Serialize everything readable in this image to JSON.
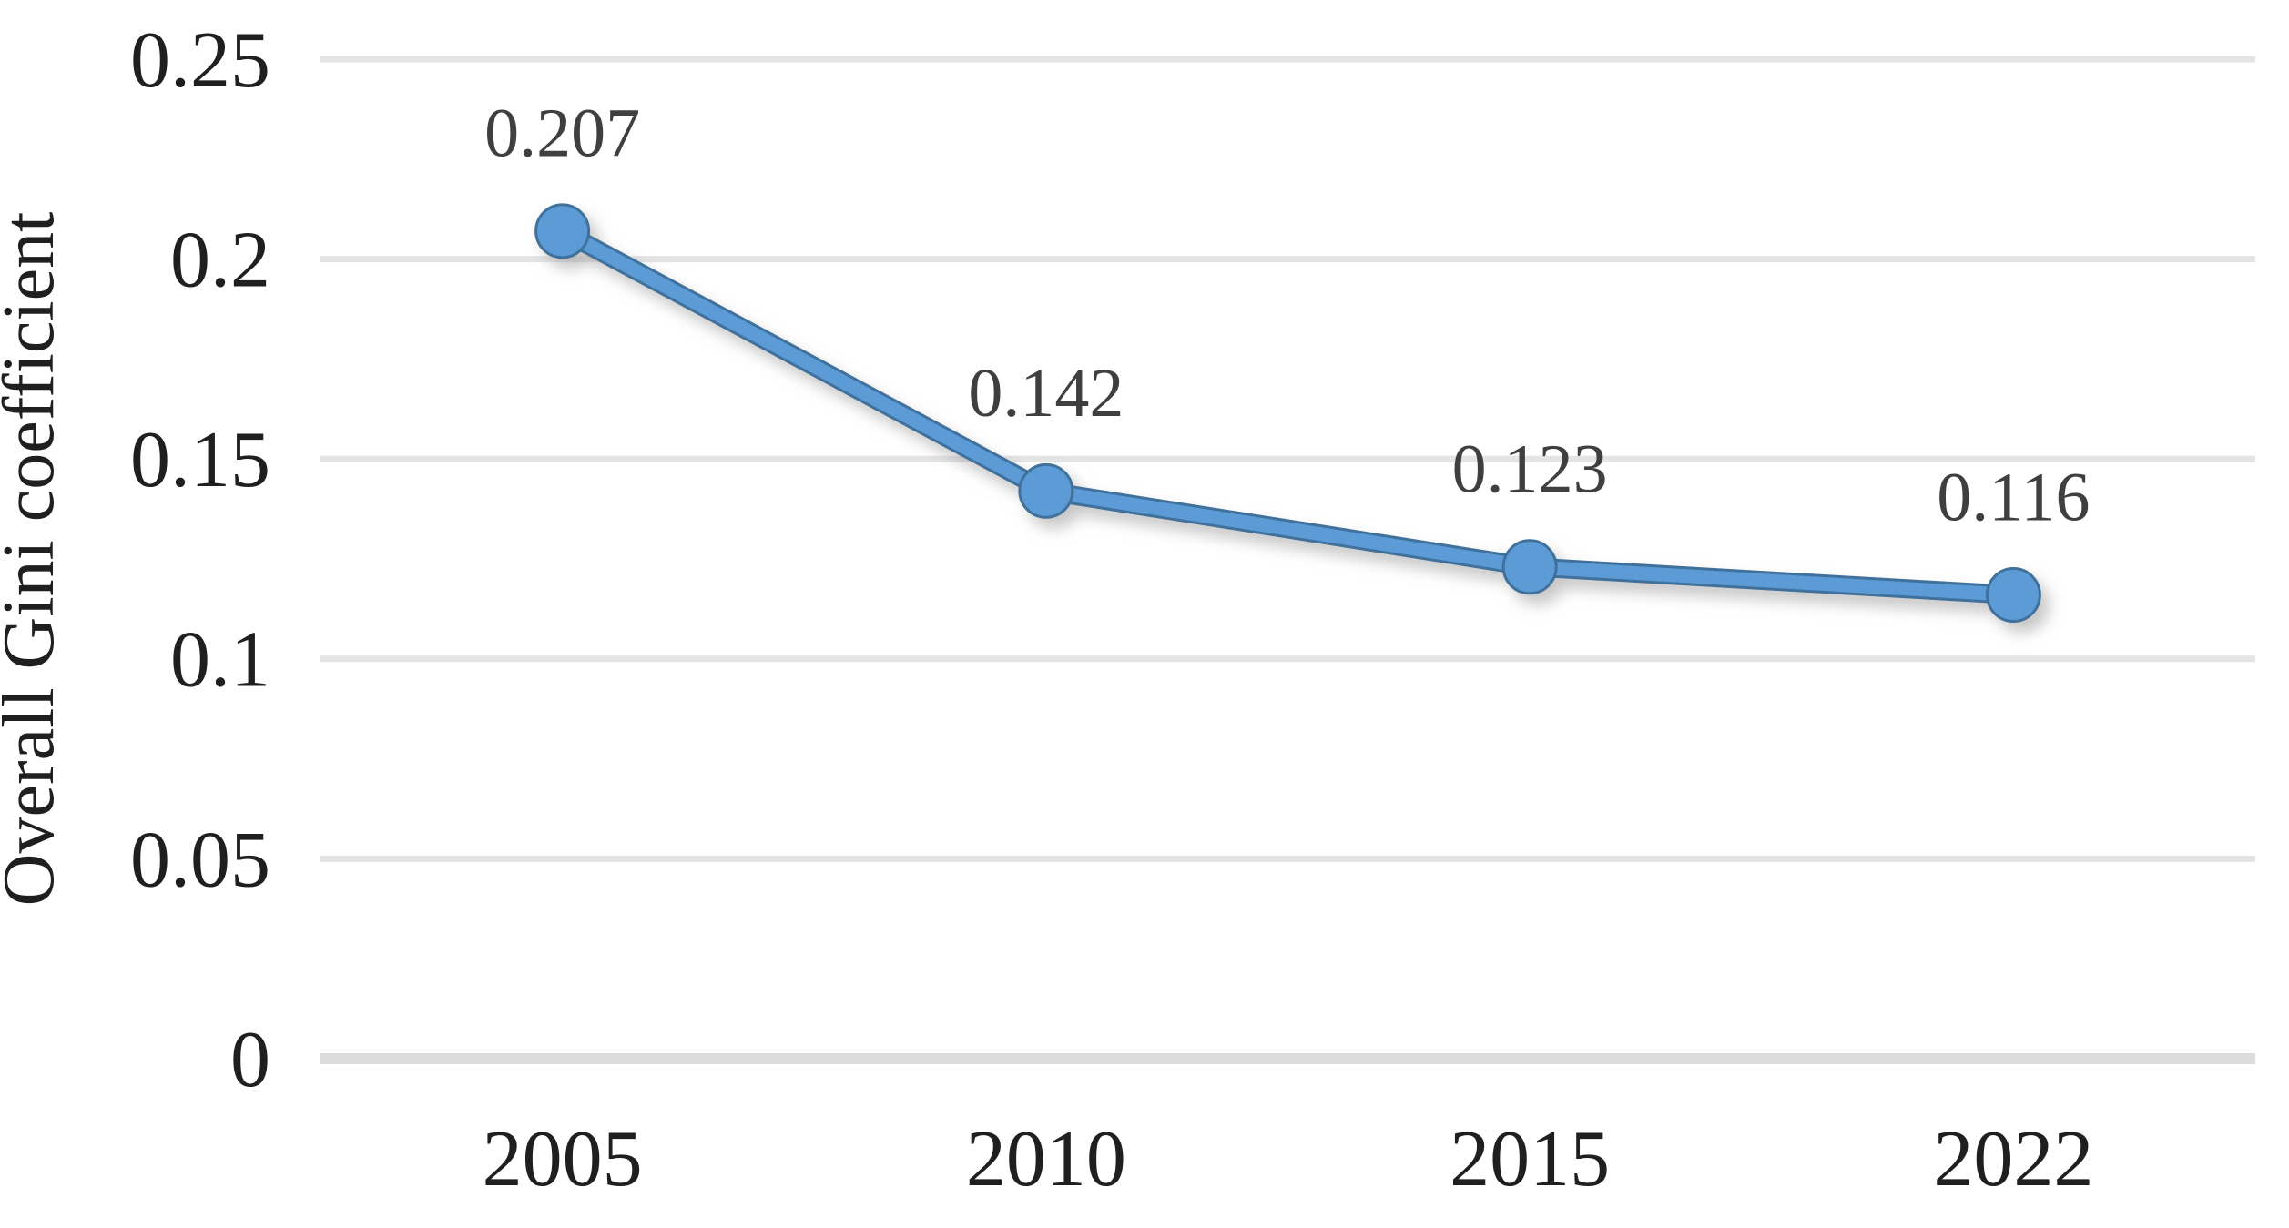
{
  "chart_data": {
    "type": "line",
    "title": "",
    "xlabel": "",
    "ylabel": "Overall Gini coefficient",
    "categories": [
      "2005",
      "2010",
      "2015",
      "2022"
    ],
    "series": [
      {
        "name": "Overall Gini coefficient",
        "values": [
          0.207,
          0.142,
          0.123,
          0.116
        ]
      }
    ],
    "data_labels": [
      "0.207",
      "0.142",
      "0.123",
      "0.116"
    ],
    "y_ticks": [
      0,
      0.05,
      0.1,
      0.15,
      0.2,
      0.25
    ],
    "y_tick_labels": [
      "0",
      "0.05",
      "0.1",
      "0.15",
      "0.2",
      "0.25"
    ],
    "ylim": [
      0,
      0.25
    ],
    "grid": true,
    "legend_position": "none",
    "marker_shape": "circle",
    "colors": {
      "line": "#5B9BD5",
      "line_edge": "#41719C",
      "marker_fill": "#5B9BD5",
      "marker_border": "#41719C",
      "gridline": "#E4E4E4",
      "zero_gridline": "#DCDCDC",
      "axis_text": "#1F1F1F",
      "data_label_text": "#3F3F3F",
      "background": "#FFFFFF"
    }
  }
}
